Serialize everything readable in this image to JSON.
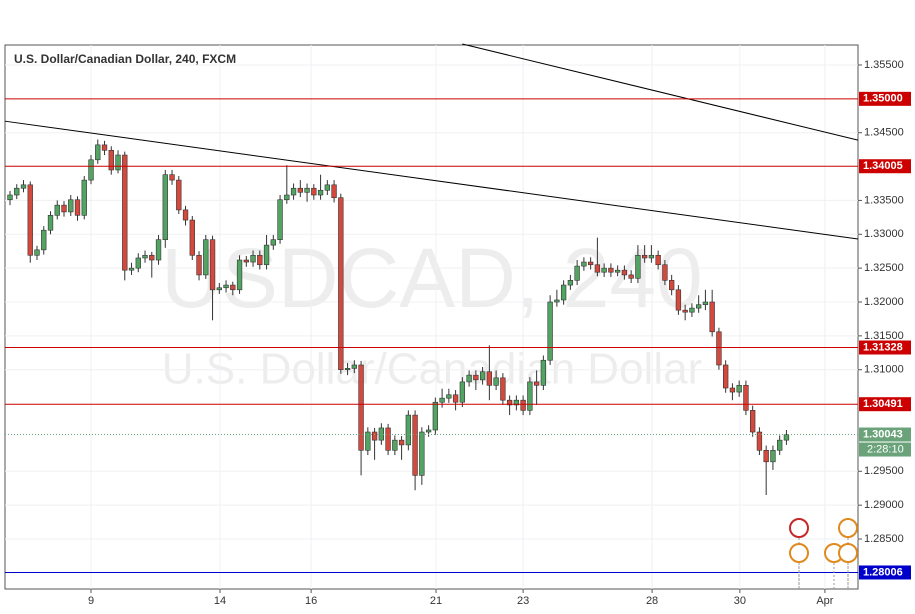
{
  "chart_data": {
    "type": "candlestick",
    "title": "U.S. Dollar/Canadian Dollar, 240, FXCM",
    "watermark": "USDCAD, 240",
    "watermark_subtitle": "U.S. Dollar/Canadian Dollar",
    "up_color": "#53a463",
    "down_color": "#d3493e",
    "grid": true,
    "x": [
      0,
      1,
      2,
      3,
      4,
      5,
      6,
      7,
      8,
      9,
      10,
      11,
      12,
      13,
      14,
      15,
      16,
      17,
      18,
      19,
      20,
      21,
      22,
      23,
      24,
      25,
      26,
      27,
      28,
      29,
      30,
      31,
      32,
      33,
      34,
      35,
      36,
      37,
      38,
      39,
      40,
      41,
      42,
      43,
      44,
      45,
      46,
      47,
      48,
      49,
      50,
      51,
      52,
      53,
      54,
      55,
      56,
      57,
      58,
      59,
      60,
      61,
      62,
      63,
      64,
      65,
      66,
      67,
      68,
      69,
      70,
      71,
      72,
      73,
      74,
      75,
      76,
      77,
      78,
      79,
      80,
      81,
      82,
      83,
      84,
      85,
      86,
      87,
      88,
      89,
      90,
      91,
      92,
      93,
      94,
      95,
      96,
      97,
      98,
      99,
      100,
      101,
      102,
      103,
      104,
      105,
      106,
      107,
      108,
      109,
      110,
      111,
      112,
      113,
      114,
      115
    ],
    "open": [
      1.3351,
      1.3358,
      1.3368,
      1.3373,
      1.3269,
      1.3277,
      1.3306,
      1.3328,
      1.3343,
      1.3333,
      1.3351,
      1.3328,
      1.338,
      1.341,
      1.3432,
      1.3424,
      1.3395,
      1.3417,
      1.3247,
      1.325,
      1.3265,
      1.3269,
      1.3262,
      1.3292,
      1.3388,
      1.338,
      1.3336,
      1.3321,
      1.3269,
      1.324,
      1.3292,
      1.3218,
      1.3221,
      1.3225,
      1.3218,
      1.3262,
      1.3259,
      1.3269,
      1.3255,
      1.3284,
      1.3292,
      1.3351,
      1.3358,
      1.3368,
      1.3362,
      1.3368,
      1.3358,
      1.3365,
      1.3373,
      1.3354,
      1.31,
      1.3102,
      1.3107,
      1.2981,
      1.3008,
      1.2996,
      1.3014,
      1.2981,
      1.2996,
      1.2989,
      1.3033,
      1.2944,
      1.3008,
      1.3011,
      1.3052,
      1.3058,
      1.3063,
      1.3052,
      1.3082,
      1.3092,
      1.3085,
      1.3097,
      1.3077,
      1.3088,
      1.3055,
      1.3048,
      1.3055,
      1.304,
      1.3082,
      1.3077,
      1.3114,
      1.32,
      1.3203,
      1.3225,
      1.3232,
      1.3253,
      1.3259,
      1.3255,
      1.3244,
      1.325,
      1.3244,
      1.3247,
      1.324,
      1.3235,
      1.3269,
      1.3265,
      1.3269,
      1.3255,
      1.3232,
      1.3218,
      1.3188,
      1.3185,
      1.3191,
      1.3196,
      1.32,
      1.3156,
      1.3107,
      1.3073,
      1.3067,
      1.3077,
      1.304,
      1.3008,
      1.2981,
      1.2964,
      1.2981,
      1.2996
    ],
    "high": [
      1.3364,
      1.3374,
      1.338,
      1.3378,
      1.3283,
      1.3312,
      1.3334,
      1.335,
      1.3349,
      1.3358,
      1.3356,
      1.3386,
      1.3417,
      1.344,
      1.3438,
      1.343,
      1.3424,
      1.3422,
      1.3258,
      1.3272,
      1.3276,
      1.3274,
      1.3299,
      1.3395,
      1.3395,
      1.3386,
      1.3342,
      1.3327,
      1.3275,
      1.3299,
      1.3298,
      1.3228,
      1.3232,
      1.323,
      1.3269,
      1.3268,
      1.3276,
      1.3276,
      1.3299,
      1.3299,
      1.3358,
      1.3402,
      1.3375,
      1.338,
      1.3375,
      1.3374,
      1.3388,
      1.338,
      1.338,
      1.336,
      1.311,
      1.3114,
      1.3113,
      1.3015,
      1.3014,
      1.3021,
      1.302,
      1.3003,
      1.3002,
      1.304,
      1.304,
      1.3015,
      1.3018,
      1.3059,
      1.3072,
      1.3072,
      1.307,
      1.3089,
      1.3099,
      1.3099,
      1.3104,
      1.3136,
      1.3099,
      1.3095,
      1.3062,
      1.3062,
      1.3062,
      1.3089,
      1.3099,
      1.3121,
      1.321,
      1.3218,
      1.3232,
      1.324,
      1.3262,
      1.3266,
      1.3266,
      1.3295,
      1.3257,
      1.3257,
      1.3254,
      1.3254,
      1.3247,
      1.3284,
      1.3284,
      1.3284,
      1.3276,
      1.3262,
      1.324,
      1.3225,
      1.3196,
      1.3198,
      1.321,
      1.3218,
      1.3218,
      1.3162,
      1.3114,
      1.308,
      1.3084,
      1.3084,
      1.3047,
      1.3015,
      1.2988,
      1.2988,
      1.3003,
      1.3011
    ],
    "low": [
      1.3343,
      1.3352,
      1.3362,
      1.3258,
      1.3262,
      1.327,
      1.33,
      1.3322,
      1.3326,
      1.3327,
      1.332,
      1.3322,
      1.3374,
      1.3404,
      1.3417,
      1.3388,
      1.339,
      1.3232,
      1.324,
      1.3244,
      1.3258,
      1.3236,
      1.3255,
      1.328,
      1.3373,
      1.333,
      1.3313,
      1.3262,
      1.3232,
      1.3234,
      1.3173,
      1.3212,
      1.3214,
      1.321,
      1.3212,
      1.3252,
      1.3252,
      1.3248,
      1.3248,
      1.3277,
      1.3286,
      1.3345,
      1.3351,
      1.3355,
      1.3348,
      1.3351,
      1.3351,
      1.3358,
      1.3347,
      1.3094,
      1.3092,
      1.3095,
      1.2944,
      1.2974,
      1.2967,
      1.2989,
      1.2974,
      1.2974,
      1.2967,
      1.2981,
      1.2922,
      1.293,
      1.3001,
      1.3004,
      1.3044,
      1.3051,
      1.304,
      1.3045,
      1.3075,
      1.307,
      1.3078,
      1.3055,
      1.307,
      1.3048,
      1.3033,
      1.304,
      1.3033,
      1.3033,
      1.3048,
      1.307,
      1.3107,
      1.3193,
      1.3196,
      1.3218,
      1.3225,
      1.3246,
      1.3248,
      1.3238,
      1.3237,
      1.3237,
      1.3238,
      1.3233,
      1.3228,
      1.3228,
      1.3258,
      1.3258,
      1.3248,
      1.3225,
      1.321,
      1.3181,
      1.3173,
      1.3178,
      1.3184,
      1.3188,
      1.3149,
      1.31,
      1.3066,
      1.3055,
      1.306,
      1.3033,
      1.3001,
      1.2974,
      1.2915,
      1.2952,
      1.2974,
      1.2989
    ],
    "close": [
      1.3358,
      1.3368,
      1.3373,
      1.3269,
      1.3277,
      1.3306,
      1.3328,
      1.3343,
      1.3333,
      1.3351,
      1.3328,
      1.338,
      1.341,
      1.3432,
      1.3424,
      1.3395,
      1.3417,
      1.3247,
      1.325,
      1.3265,
      1.3269,
      1.3262,
      1.3292,
      1.3388,
      1.338,
      1.3336,
      1.3321,
      1.3269,
      1.324,
      1.3292,
      1.3218,
      1.3221,
      1.3225,
      1.3218,
      1.3262,
      1.3259,
      1.3269,
      1.3255,
      1.3284,
      1.3292,
      1.3351,
      1.3358,
      1.3368,
      1.3362,
      1.3368,
      1.3358,
      1.3365,
      1.3373,
      1.3354,
      1.31,
      1.3102,
      1.3107,
      1.2981,
      1.3008,
      1.2996,
      1.3014,
      1.2981,
      1.2996,
      1.2989,
      1.3033,
      1.2944,
      1.3008,
      1.3011,
      1.3052,
      1.3058,
      1.3063,
      1.3052,
      1.3082,
      1.3092,
      1.3085,
      1.3097,
      1.3077,
      1.3088,
      1.3055,
      1.3048,
      1.3055,
      1.304,
      1.3082,
      1.3077,
      1.3114,
      1.32,
      1.3203,
      1.3225,
      1.3232,
      1.3253,
      1.3259,
      1.3255,
      1.3244,
      1.325,
      1.3244,
      1.3247,
      1.324,
      1.3235,
      1.3269,
      1.3265,
      1.3269,
      1.3255,
      1.3232,
      1.3218,
      1.3188,
      1.3185,
      1.3191,
      1.3196,
      1.32,
      1.3156,
      1.3107,
      1.3073,
      1.3067,
      1.3077,
      1.304,
      1.3008,
      1.2981,
      1.2964,
      1.2981,
      1.2996,
      1.3004
    ],
    "xlim": [
      -0.74,
      125.6
    ],
    "ylim": [
      1.27762,
      1.35795
    ],
    "xticks": [
      {
        "value": 12,
        "label": "9"
      },
      {
        "value": 31.1,
        "label": "14"
      },
      {
        "value": 44.6,
        "label": "16"
      },
      {
        "value": 63.1,
        "label": "21"
      },
      {
        "value": 76,
        "label": "23"
      },
      {
        "value": 95.1,
        "label": "28"
      },
      {
        "value": 108.1,
        "label": "30"
      },
      {
        "value": 120.7,
        "label": "Apr"
      }
    ],
    "yticks": [
      {
        "value": 1.355,
        "label": "1.35500"
      },
      {
        "value": 1.345,
        "label": "1.34500"
      },
      {
        "value": 1.335,
        "label": "1.33500"
      },
      {
        "value": 1.33,
        "label": "1.33000"
      },
      {
        "value": 1.325,
        "label": "1.32500"
      },
      {
        "value": 1.32,
        "label": "1.32000"
      },
      {
        "value": 1.315,
        "label": "1.31500"
      },
      {
        "value": 1.31,
        "label": "1.31000"
      },
      {
        "value": 1.295,
        "label": "1.29500"
      },
      {
        "value": 1.29,
        "label": "1.29000"
      },
      {
        "value": 1.285,
        "label": "1.28500"
      }
    ],
    "levels": [
      {
        "value": 1.35,
        "label": "1.35000",
        "color": "#cc0000"
      },
      {
        "value": 1.34005,
        "label": "1.34005",
        "color": "#cc0000"
      },
      {
        "value": 1.31328,
        "label": "1.31328",
        "color": "#cc0000"
      },
      {
        "value": 1.30491,
        "label": "1.30491",
        "color": "#cc0000"
      },
      {
        "value": 1.28006,
        "label": "1.28006",
        "color": "#0000cc"
      }
    ],
    "trendlines": [
      {
        "x": [
          -0.74,
          125.6
        ],
        "y": [
          1.3467,
          1.3293
        ]
      },
      {
        "x": [
          67,
          125.6
        ],
        "y": [
          1.3581,
          1.3439
        ]
      }
    ],
    "last_price": 1.30043,
    "last_price_color": "#6aa37a",
    "countdown": "2:28:10"
  }
}
